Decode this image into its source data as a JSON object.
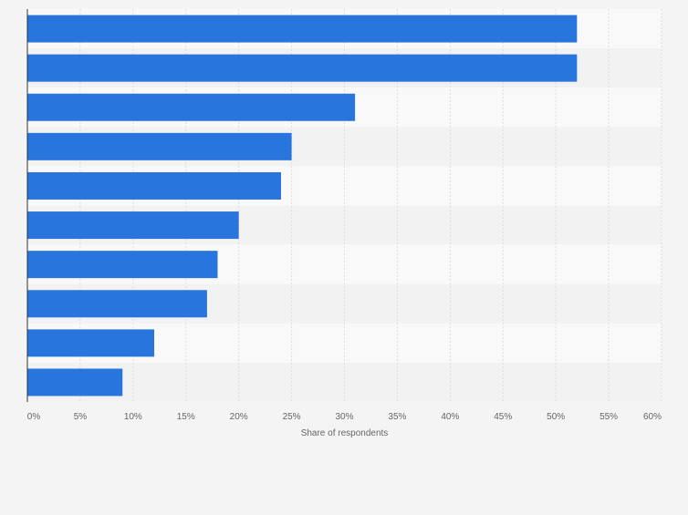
{
  "chart_data": {
    "type": "bar",
    "orientation": "horizontal",
    "categories": [
      "",
      "",
      "",
      "",
      "",
      "",
      "",
      "",
      "",
      ""
    ],
    "values": [
      52,
      52,
      31,
      25,
      24,
      20,
      18,
      17,
      12,
      9
    ],
    "title": "",
    "xlabel": "Share of respondents",
    "ylabel": "",
    "xlim": [
      0,
      60
    ],
    "x_ticks": [
      "0%",
      "5%",
      "10%",
      "15%",
      "20%",
      "25%",
      "30%",
      "35%",
      "40%",
      "45%",
      "50%",
      "55%",
      "60%"
    ],
    "grid": true
  },
  "colors": {
    "bar": "#2876dd",
    "band_light": "#f9f9f9",
    "band_dark": "#f2f2f2",
    "grid": "#dcdcdc",
    "axis": "#333333",
    "text": "#666666"
  }
}
